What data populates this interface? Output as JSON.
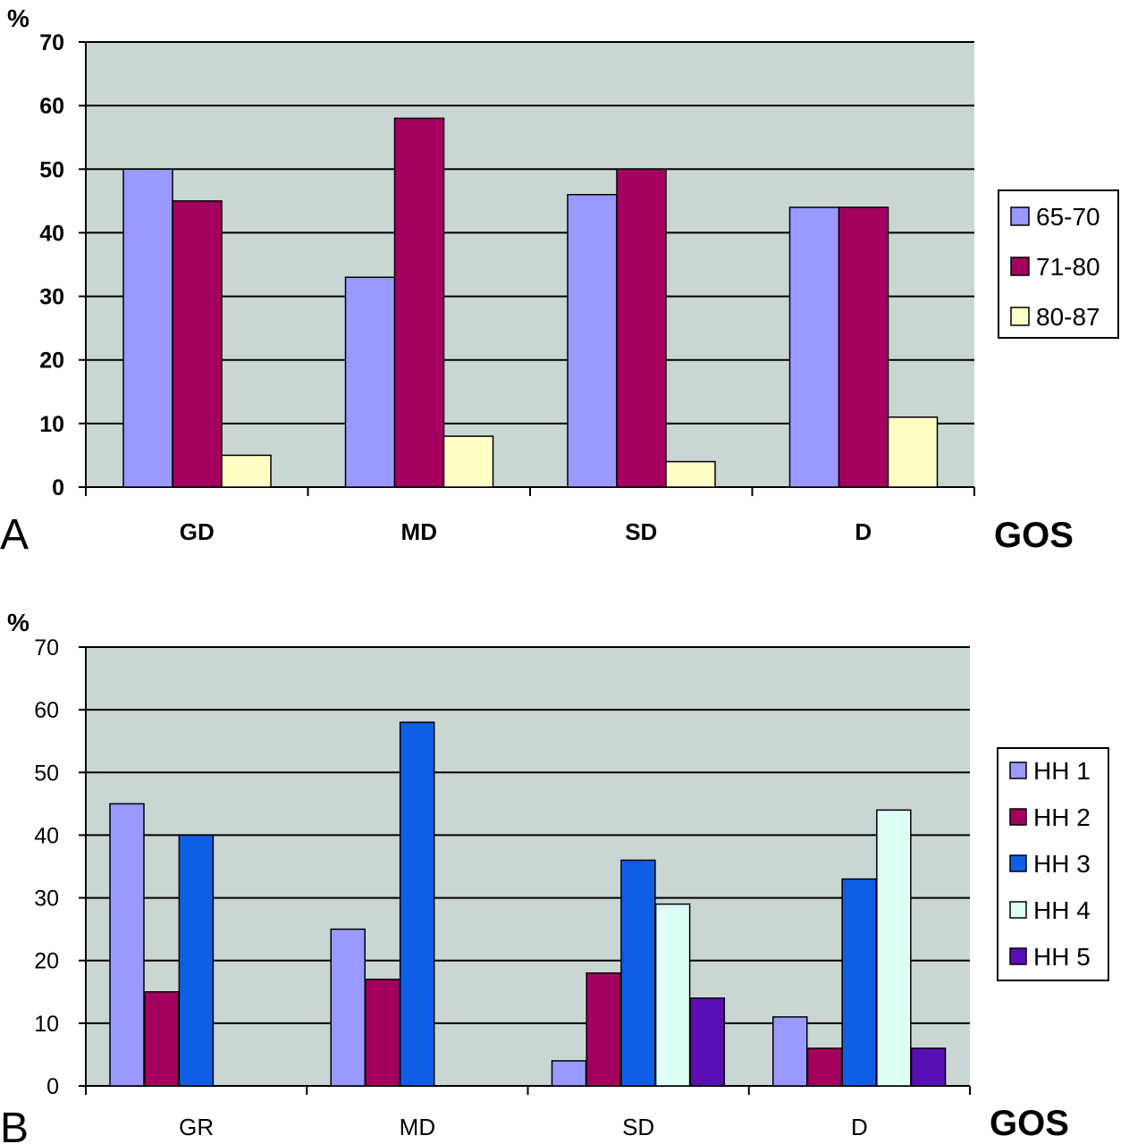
{
  "chart_data": [
    {
      "type": "bar",
      "panel_label": "A",
      "ylabel": "%",
      "xlabel": "GOS",
      "ylim": [
        0,
        70
      ],
      "yticks": [
        0,
        10,
        20,
        30,
        40,
        50,
        60,
        70
      ],
      "grid": true,
      "legend_position": "right",
      "categories": [
        "GD",
        "MD",
        "SD",
        "D"
      ],
      "series": [
        {
          "name": "65-70",
          "color": "#9999ff",
          "values": [
            50,
            33,
            46,
            44
          ]
        },
        {
          "name": "71-80",
          "color": "#a3005f",
          "values": [
            45,
            58,
            50,
            44
          ]
        },
        {
          "name": "80-87",
          "color": "#ffffc6",
          "values": [
            5,
            8,
            4,
            11
          ]
        }
      ]
    },
    {
      "type": "bar",
      "panel_label": "B",
      "ylabel": "%",
      "xlabel": "GOS",
      "ylim": [
        0,
        70
      ],
      "yticks": [
        0,
        10,
        20,
        30,
        40,
        50,
        60,
        70
      ],
      "grid": true,
      "legend_position": "right",
      "categories": [
        "GR",
        "MD",
        "SD",
        "D"
      ],
      "series": [
        {
          "name": "HH 1",
          "color": "#9999ff",
          "values": [
            45,
            25,
            4,
            11
          ]
        },
        {
          "name": "HH 2",
          "color": "#a3005f",
          "values": [
            15,
            17,
            18,
            6
          ]
        },
        {
          "name": "HH 3",
          "color": "#0f5ee6",
          "values": [
            40,
            58,
            36,
            33
          ]
        },
        {
          "name": "HH 4",
          "color": "#ddfff6",
          "values": [
            0,
            0,
            29,
            44
          ]
        },
        {
          "name": "HH 5",
          "color": "#5a0fb4",
          "values": [
            0,
            0,
            14,
            6
          ]
        }
      ]
    }
  ]
}
